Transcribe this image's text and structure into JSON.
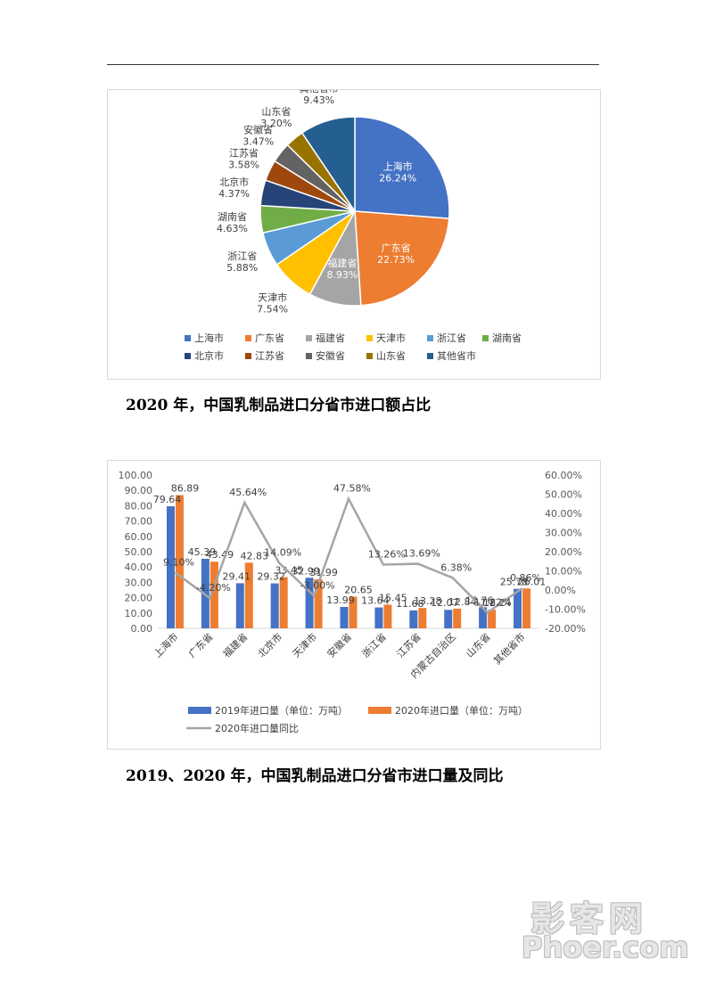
{
  "captions": {
    "pie": "2020 年，中国乳制品进口分省市进口额占比",
    "bar": "2019、2020 年，中国乳制品进口分省市进口量及同比"
  },
  "watermark": {
    "top": "影客网",
    "bottom": "Phoer.com"
  },
  "chart_data": [
    {
      "type": "pie",
      "title": "",
      "legend_position": "bottom",
      "slices": [
        {
          "label": "上海市",
          "value": 26.24,
          "display": "26.24%",
          "color": "#4472C4"
        },
        {
          "label": "广东省",
          "value": 22.73,
          "display": "22.73%",
          "color": "#ED7D31"
        },
        {
          "label": "福建省",
          "value": 8.93,
          "display": "8.93%",
          "color": "#A5A5A5"
        },
        {
          "label": "天津市",
          "value": 7.54,
          "display": "7.54%",
          "color": "#FFC000"
        },
        {
          "label": "浙江省",
          "value": 5.88,
          "display": "5.88%",
          "color": "#5B9BD5"
        },
        {
          "label": "湖南省",
          "value": 4.63,
          "display": "4.63%",
          "color": "#70AD47"
        },
        {
          "label": "北京市",
          "value": 4.37,
          "display": "4.37%",
          "color": "#264478"
        },
        {
          "label": "江苏省",
          "value": 3.58,
          "display": "3.58%",
          "color": "#9E480E"
        },
        {
          "label": "安徽省",
          "value": 3.47,
          "display": "3.47%",
          "color": "#636363"
        },
        {
          "label": "山东省",
          "value": 3.2,
          "display": "3.20%",
          "color": "#997300"
        },
        {
          "label": "其他省市",
          "value": 9.43,
          "display": "9.43%",
          "color": "#255E91"
        }
      ]
    },
    {
      "type": "bar",
      "title": "",
      "categories": [
        "上海市",
        "广东省",
        "福建省",
        "北京市",
        "天津市",
        "安徽省",
        "浙江省",
        "江苏省",
        "内蒙古自治区",
        "山东省",
        "其他省市"
      ],
      "series": [
        {
          "name": "2019年进口量（单位：万吨）",
          "type": "bar",
          "axis": "left",
          "color": "#4472C4",
          "values": [
            79.64,
            45.39,
            29.41,
            29.32,
            32.99,
            13.99,
            13.64,
            11.68,
            12.07,
            13.76,
            25.78
          ]
        },
        {
          "name": "2020年进口量（单位：万吨）",
          "type": "bar",
          "axis": "left",
          "color": "#ED7D31",
          "values": [
            86.89,
            43.49,
            42.83,
            33.45,
            31.99,
            20.65,
            15.45,
            13.28,
            12.84,
            12.14,
            26.01
          ]
        },
        {
          "name": "2020年进口量同比",
          "type": "line",
          "axis": "right",
          "color": "#A5A5A5",
          "values": [
            9.1,
            -4.2,
            45.64,
            14.09,
            -3.0,
            47.58,
            13.26,
            13.69,
            6.38,
            -11.82,
            0.86
          ],
          "labels": [
            "9.10%",
            "-4.20%",
            "45.64%",
            "14.09%",
            "-3.00%",
            "47.58%",
            "13.26%",
            "13.69%",
            "6.38%",
            "-11.82%",
            "0.86%"
          ]
        }
      ],
      "y_left": {
        "min": 0,
        "max": 100,
        "step": 10,
        "ticks": [
          "0.00",
          "10.00",
          "20.00",
          "30.00",
          "40.00",
          "50.00",
          "60.00",
          "70.00",
          "80.00",
          "90.00",
          "100.00"
        ]
      },
      "y_right": {
        "min": -20,
        "max": 60,
        "step": 10,
        "ticks": [
          "-20.00%",
          "-10.00%",
          "0.00%",
          "10.00%",
          "20.00%",
          "30.00%",
          "40.00%",
          "50.00%",
          "60.00%"
        ]
      },
      "legend_position": "bottom",
      "grid": false
    }
  ]
}
